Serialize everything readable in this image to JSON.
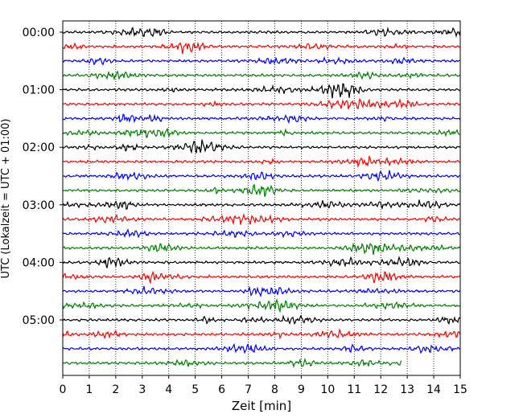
{
  "chart_data": {
    "type": "line",
    "title": "",
    "xlabel": "Zeit  [min]",
    "ylabel": "UTC (Lokalzeit = UTC + 01:00)",
    "xlim": [
      0,
      15
    ],
    "x_ticks": [
      "0",
      "1",
      "2",
      "3",
      "4",
      "5",
      "6",
      "7",
      "8",
      "9",
      "10",
      "11",
      "12",
      "13",
      "14",
      "15"
    ],
    "y_ticks": [
      "00:00",
      "01:00",
      "02:00",
      "03:00",
      "04:00",
      "05:00"
    ],
    "grid": "vertical dotted",
    "trace_colors": [
      "#000000",
      "#ff0000",
      "#0000ff",
      "#008000"
    ],
    "rows": [
      {
        "start": "00:00",
        "color": "#000000",
        "x_end": 15
      },
      {
        "start": "00:15",
        "color": "#ff0000",
        "x_end": 15
      },
      {
        "start": "00:30",
        "color": "#0000ff",
        "x_end": 15
      },
      {
        "start": "00:45",
        "color": "#008000",
        "x_end": 15
      },
      {
        "start": "01:00",
        "color": "#000000",
        "x_end": 15
      },
      {
        "start": "01:15",
        "color": "#ff0000",
        "x_end": 15
      },
      {
        "start": "01:30",
        "color": "#0000ff",
        "x_end": 15
      },
      {
        "start": "01:45",
        "color": "#008000",
        "x_end": 15
      },
      {
        "start": "02:00",
        "color": "#000000",
        "x_end": 15
      },
      {
        "start": "02:15",
        "color": "#ff0000",
        "x_end": 15
      },
      {
        "start": "02:30",
        "color": "#0000ff",
        "x_end": 15
      },
      {
        "start": "02:45",
        "color": "#008000",
        "x_end": 15
      },
      {
        "start": "03:00",
        "color": "#000000",
        "x_end": 15
      },
      {
        "start": "03:15",
        "color": "#ff0000",
        "x_end": 15
      },
      {
        "start": "03:30",
        "color": "#0000ff",
        "x_end": 15
      },
      {
        "start": "03:45",
        "color": "#008000",
        "x_end": 15
      },
      {
        "start": "04:00",
        "color": "#000000",
        "x_end": 15
      },
      {
        "start": "04:15",
        "color": "#ff0000",
        "x_end": 15
      },
      {
        "start": "04:30",
        "color": "#0000ff",
        "x_end": 15
      },
      {
        "start": "04:45",
        "color": "#008000",
        "x_end": 15
      },
      {
        "start": "05:00",
        "color": "#000000",
        "x_end": 15
      },
      {
        "start": "05:15",
        "color": "#ff0000",
        "x_end": 15
      },
      {
        "start": "05:30",
        "color": "#0000ff",
        "x_end": 15
      },
      {
        "start": "05:45",
        "color": "#008000",
        "x_end": 12.8
      }
    ]
  }
}
